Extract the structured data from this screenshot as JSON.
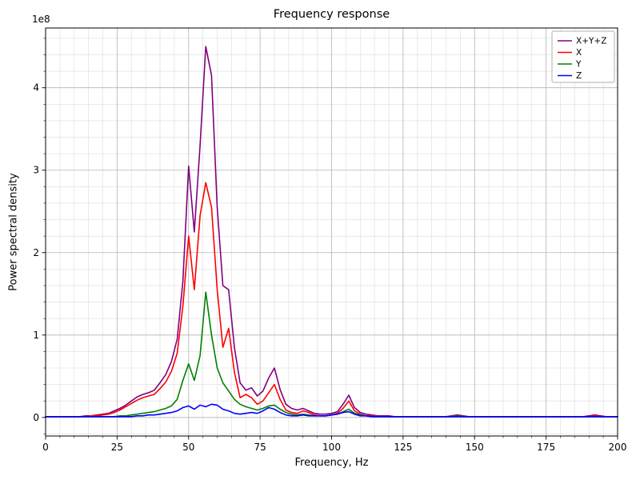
{
  "figure": {
    "title": "Frequency response",
    "xlabel": "Frequency, Hz",
    "ylabel": "Power spectral density",
    "offset_text": "1e8"
  },
  "chart_data": {
    "type": "line",
    "title": "Frequency response",
    "xlabel": "Frequency, Hz",
    "ylabel": "Power spectral density",
    "y_offset_text": "1e8",
    "y_unit_multiplier": 100000000,
    "xlim": [
      0,
      200
    ],
    "ylim": [
      -0.225,
      4.725
    ],
    "xticks": [
      0,
      25,
      50,
      75,
      100,
      125,
      150,
      175,
      200
    ],
    "yticks": [
      0,
      1,
      2,
      3,
      4
    ],
    "minor_x_step": 5,
    "minor_y_step": 0.2,
    "grid": true,
    "legend_position": "upper right",
    "x": [
      0,
      2,
      4,
      6,
      8,
      10,
      12,
      14,
      16,
      18,
      20,
      22,
      24,
      26,
      28,
      30,
      32,
      34,
      36,
      38,
      40,
      42,
      44,
      46,
      48,
      50,
      52,
      54,
      56,
      58,
      60,
      62,
      64,
      66,
      68,
      70,
      72,
      74,
      76,
      78,
      80,
      82,
      84,
      86,
      88,
      90,
      92,
      94,
      96,
      98,
      100,
      102,
      104,
      106,
      108,
      110,
      112,
      114,
      116,
      118,
      120,
      122,
      124,
      126,
      128,
      130,
      132,
      134,
      136,
      138,
      140,
      142,
      144,
      146,
      148,
      150,
      152,
      154,
      156,
      158,
      160,
      162,
      164,
      166,
      168,
      170,
      172,
      174,
      176,
      178,
      180,
      182,
      184,
      186,
      188,
      190,
      192,
      194,
      196,
      198,
      200
    ],
    "series": [
      {
        "name": "X+Y+Z",
        "color": "#800080",
        "values": [
          0.01,
          0.01,
          0.01,
          0.01,
          0.01,
          0.01,
          0.01,
          0.02,
          0.02,
          0.03,
          0.04,
          0.05,
          0.08,
          0.11,
          0.15,
          0.2,
          0.25,
          0.28,
          0.3,
          0.33,
          0.42,
          0.52,
          0.68,
          0.95,
          1.65,
          3.05,
          2.25,
          3.3,
          4.5,
          4.15,
          2.55,
          1.6,
          1.55,
          0.85,
          0.42,
          0.33,
          0.36,
          0.26,
          0.32,
          0.48,
          0.6,
          0.34,
          0.16,
          0.11,
          0.09,
          0.11,
          0.08,
          0.05,
          0.04,
          0.04,
          0.05,
          0.07,
          0.16,
          0.27,
          0.12,
          0.06,
          0.04,
          0.03,
          0.02,
          0.02,
          0.02,
          0.01,
          0.01,
          0.01,
          0.01,
          0.01,
          0.01,
          0.01,
          0.01,
          0.01,
          0.01,
          0.02,
          0.03,
          0.02,
          0.01,
          0.01,
          0.01,
          0.01,
          0.01,
          0.01,
          0.01,
          0.01,
          0.01,
          0.01,
          0.01,
          0.01,
          0.01,
          0.01,
          0.01,
          0.01,
          0.01,
          0.01,
          0.01,
          0.01,
          0.01,
          0.02,
          0.03,
          0.02,
          0.01,
          0.01,
          0.01
        ]
      },
      {
        "name": "X",
        "color": "#ff0000",
        "values": [
          0.01,
          0.01,
          0.01,
          0.01,
          0.01,
          0.01,
          0.01,
          0.01,
          0.02,
          0.02,
          0.03,
          0.04,
          0.06,
          0.09,
          0.13,
          0.17,
          0.21,
          0.24,
          0.26,
          0.28,
          0.35,
          0.43,
          0.56,
          0.78,
          1.35,
          2.2,
          1.55,
          2.45,
          2.85,
          2.55,
          1.55,
          0.85,
          1.08,
          0.55,
          0.24,
          0.28,
          0.24,
          0.16,
          0.2,
          0.3,
          0.4,
          0.22,
          0.09,
          0.06,
          0.05,
          0.08,
          0.06,
          0.03,
          0.02,
          0.02,
          0.03,
          0.05,
          0.11,
          0.2,
          0.08,
          0.04,
          0.02,
          0.02,
          0.01,
          0.01,
          0.01,
          0.01,
          0.01,
          0.01,
          0.01,
          0.01,
          0.01,
          0.01,
          0.01,
          0.01,
          0.01,
          0.01,
          0.02,
          0.01,
          0.01,
          0.01,
          0.01,
          0.01,
          0.01,
          0.01,
          0.01,
          0.01,
          0.01,
          0.01,
          0.01,
          0.01,
          0.01,
          0.01,
          0.01,
          0.01,
          0.01,
          0.01,
          0.01,
          0.01,
          0.01,
          0.01,
          0.02,
          0.01,
          0.01,
          0.01,
          0.01
        ]
      },
      {
        "name": "Y",
        "color": "#008000",
        "values": [
          0.01,
          0.01,
          0.01,
          0.01,
          0.01,
          0.01,
          0.01,
          0.01,
          0.01,
          0.01,
          0.01,
          0.01,
          0.01,
          0.02,
          0.02,
          0.03,
          0.04,
          0.05,
          0.06,
          0.07,
          0.09,
          0.11,
          0.14,
          0.22,
          0.45,
          0.65,
          0.45,
          0.75,
          1.52,
          1.0,
          0.6,
          0.42,
          0.32,
          0.22,
          0.16,
          0.13,
          0.11,
          0.09,
          0.11,
          0.14,
          0.15,
          0.1,
          0.06,
          0.04,
          0.03,
          0.04,
          0.03,
          0.02,
          0.02,
          0.02,
          0.03,
          0.04,
          0.07,
          0.1,
          0.05,
          0.03,
          0.02,
          0.01,
          0.01,
          0.01,
          0.01,
          0.01,
          0.01,
          0.01,
          0.01,
          0.01,
          0.01,
          0.01,
          0.01,
          0.01,
          0.01,
          0.01,
          0.02,
          0.01,
          0.01,
          0.01,
          0.01,
          0.01,
          0.01,
          0.01,
          0.01,
          0.01,
          0.01,
          0.01,
          0.01,
          0.01,
          0.01,
          0.01,
          0.01,
          0.01,
          0.01,
          0.01,
          0.01,
          0.01,
          0.01,
          0.01,
          0.01,
          0.01,
          0.01,
          0.01,
          0.01
        ]
      },
      {
        "name": "Z",
        "color": "#0000ff",
        "values": [
          0.01,
          0.01,
          0.01,
          0.01,
          0.01,
          0.01,
          0.01,
          0.01,
          0.01,
          0.01,
          0.01,
          0.01,
          0.01,
          0.01,
          0.01,
          0.01,
          0.02,
          0.02,
          0.03,
          0.03,
          0.04,
          0.05,
          0.06,
          0.08,
          0.12,
          0.14,
          0.1,
          0.15,
          0.13,
          0.16,
          0.15,
          0.1,
          0.08,
          0.05,
          0.04,
          0.05,
          0.06,
          0.05,
          0.08,
          0.12,
          0.1,
          0.06,
          0.03,
          0.02,
          0.02,
          0.03,
          0.02,
          0.02,
          0.02,
          0.02,
          0.03,
          0.04,
          0.06,
          0.07,
          0.04,
          0.02,
          0.02,
          0.01,
          0.01,
          0.01,
          0.01,
          0.01,
          0.01,
          0.01,
          0.01,
          0.01,
          0.01,
          0.01,
          0.01,
          0.01,
          0.01,
          0.01,
          0.01,
          0.01,
          0.01,
          0.01,
          0.01,
          0.01,
          0.01,
          0.01,
          0.01,
          0.01,
          0.01,
          0.01,
          0.01,
          0.01,
          0.01,
          0.01,
          0.01,
          0.01,
          0.01,
          0.01,
          0.01,
          0.01,
          0.01,
          0.01,
          0.01,
          0.01,
          0.01,
          0.01,
          0.01
        ]
      }
    ]
  }
}
